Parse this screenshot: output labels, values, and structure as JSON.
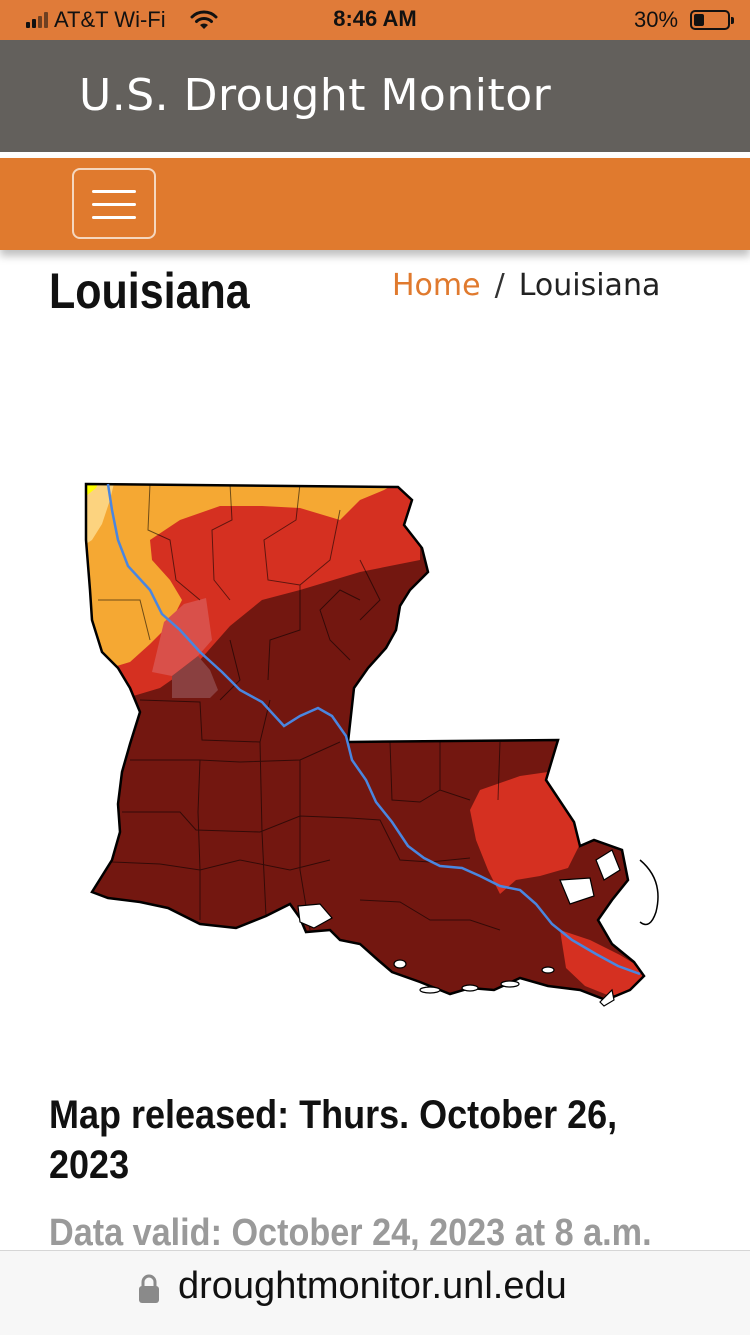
{
  "status_bar": {
    "carrier": "AT&T Wi-Fi",
    "time": "8:46 AM",
    "battery_percent": "30%",
    "battery_level": 0.3,
    "icons": [
      "signal-icon",
      "wifi-icon",
      "battery-icon"
    ]
  },
  "header": {
    "site_title": "U.S. Drought Monitor",
    "menu_icon": "hamburger-menu-icon"
  },
  "page": {
    "title": "Louisiana",
    "breadcrumb": {
      "home": "Home",
      "separator": "/",
      "current": "Louisiana"
    }
  },
  "map": {
    "drought_colors": {
      "D0": "#ffff00",
      "D1": "#fcd37f",
      "D2": "#f5a833",
      "D3": "#d53021",
      "D4": "#731710"
    },
    "river_color": "#4a86e0"
  },
  "info": {
    "released": "Map released: Thurs. October 26, 2023",
    "valid": "Data valid: October 24, 2023 at 8 a.m."
  },
  "browser": {
    "url": "droughtmonitor.unl.edu",
    "lock_icon": "lock-icon"
  },
  "colors": {
    "status_bar": "#e07b39",
    "header": "#63605c",
    "nav": "#e07a2e",
    "accent": "#e07a2e"
  }
}
